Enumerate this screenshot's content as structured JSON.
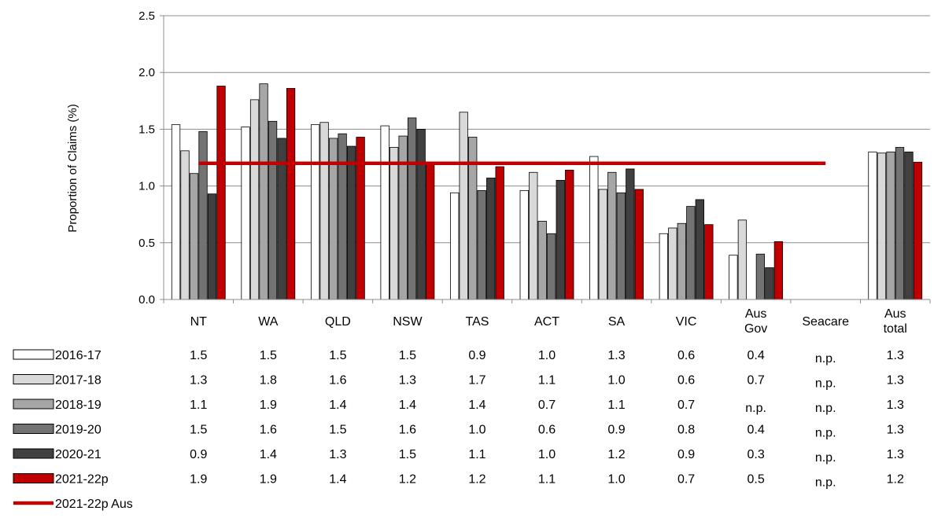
{
  "chart_data": {
    "type": "bar",
    "ylabel": "Proportion of Claims (%)",
    "ylim": [
      0,
      2.5
    ],
    "yticks": [
      "0.0",
      "0.5",
      "1.0",
      "1.5",
      "2.0",
      "2.5"
    ],
    "grid": true,
    "categories": [
      [
        "NT"
      ],
      [
        "WA"
      ],
      [
        "QLD"
      ],
      [
        "NSW"
      ],
      [
        "TAS"
      ],
      [
        "ACT"
      ],
      [
        "SA"
      ],
      [
        "VIC"
      ],
      [
        "Aus",
        "Gov"
      ],
      [
        "Seacare"
      ],
      [
        "Aus",
        "total"
      ]
    ],
    "series": [
      {
        "name": "2016-17",
        "color": "#ffffff",
        "values": [
          1.54,
          1.52,
          1.54,
          1.53,
          0.94,
          0.96,
          1.26,
          0.58,
          0.39,
          null,
          1.3
        ],
        "labels": [
          "1.5",
          "1.5",
          "1.5",
          "1.5",
          "0.9",
          "1.0",
          "1.3",
          "0.6",
          "0.4",
          "n.p.",
          "1.3"
        ]
      },
      {
        "name": "2017-18",
        "color": "#d9d9d9",
        "values": [
          1.31,
          1.76,
          1.56,
          1.34,
          1.65,
          1.12,
          0.97,
          0.63,
          0.7,
          null,
          1.29
        ],
        "labels": [
          "1.3",
          "1.8",
          "1.6",
          "1.3",
          "1.7",
          "1.1",
          "1.0",
          "0.6",
          "0.7",
          "n.p.",
          "1.3"
        ]
      },
      {
        "name": "2018-19",
        "color": "#a6a6a6",
        "values": [
          1.11,
          1.9,
          1.42,
          1.44,
          1.43,
          0.69,
          1.12,
          0.67,
          null,
          null,
          1.3
        ],
        "labels": [
          "1.1",
          "1.9",
          "1.4",
          "1.4",
          "1.4",
          "0.7",
          "1.1",
          "0.7",
          "n.p.",
          "n.p.",
          "1.3"
        ]
      },
      {
        "name": "2019-20",
        "color": "#737373",
        "values": [
          1.48,
          1.57,
          1.46,
          1.6,
          0.96,
          0.58,
          0.94,
          0.82,
          0.4,
          null,
          1.34
        ],
        "labels": [
          "1.5",
          "1.6",
          "1.5",
          "1.6",
          "1.0",
          "0.6",
          "0.9",
          "0.8",
          "0.4",
          "n.p.",
          "1.3"
        ]
      },
      {
        "name": "2020-21",
        "color": "#404040",
        "values": [
          0.93,
          1.42,
          1.35,
          1.5,
          1.07,
          1.05,
          1.15,
          0.88,
          0.28,
          null,
          1.3
        ],
        "labels": [
          "0.9",
          "1.4",
          "1.3",
          "1.5",
          "1.1",
          "1.0",
          "1.2",
          "0.9",
          "0.3",
          "n.p.",
          "1.3"
        ]
      },
      {
        "name": "2021-22p",
        "color": "#c00000",
        "values": [
          1.88,
          1.86,
          1.43,
          1.2,
          1.17,
          1.14,
          0.97,
          0.66,
          0.51,
          null,
          1.21
        ],
        "labels": [
          "1.9",
          "1.9",
          "1.4",
          "1.2",
          "1.2",
          "1.1",
          "1.0",
          "0.7",
          "0.5",
          "n.p.",
          "1.2"
        ]
      }
    ],
    "reference_line": {
      "name": "2021-22p Aus",
      "value": 1.2,
      "color": "#c00000",
      "from_category": 0,
      "to_category": 9
    }
  }
}
